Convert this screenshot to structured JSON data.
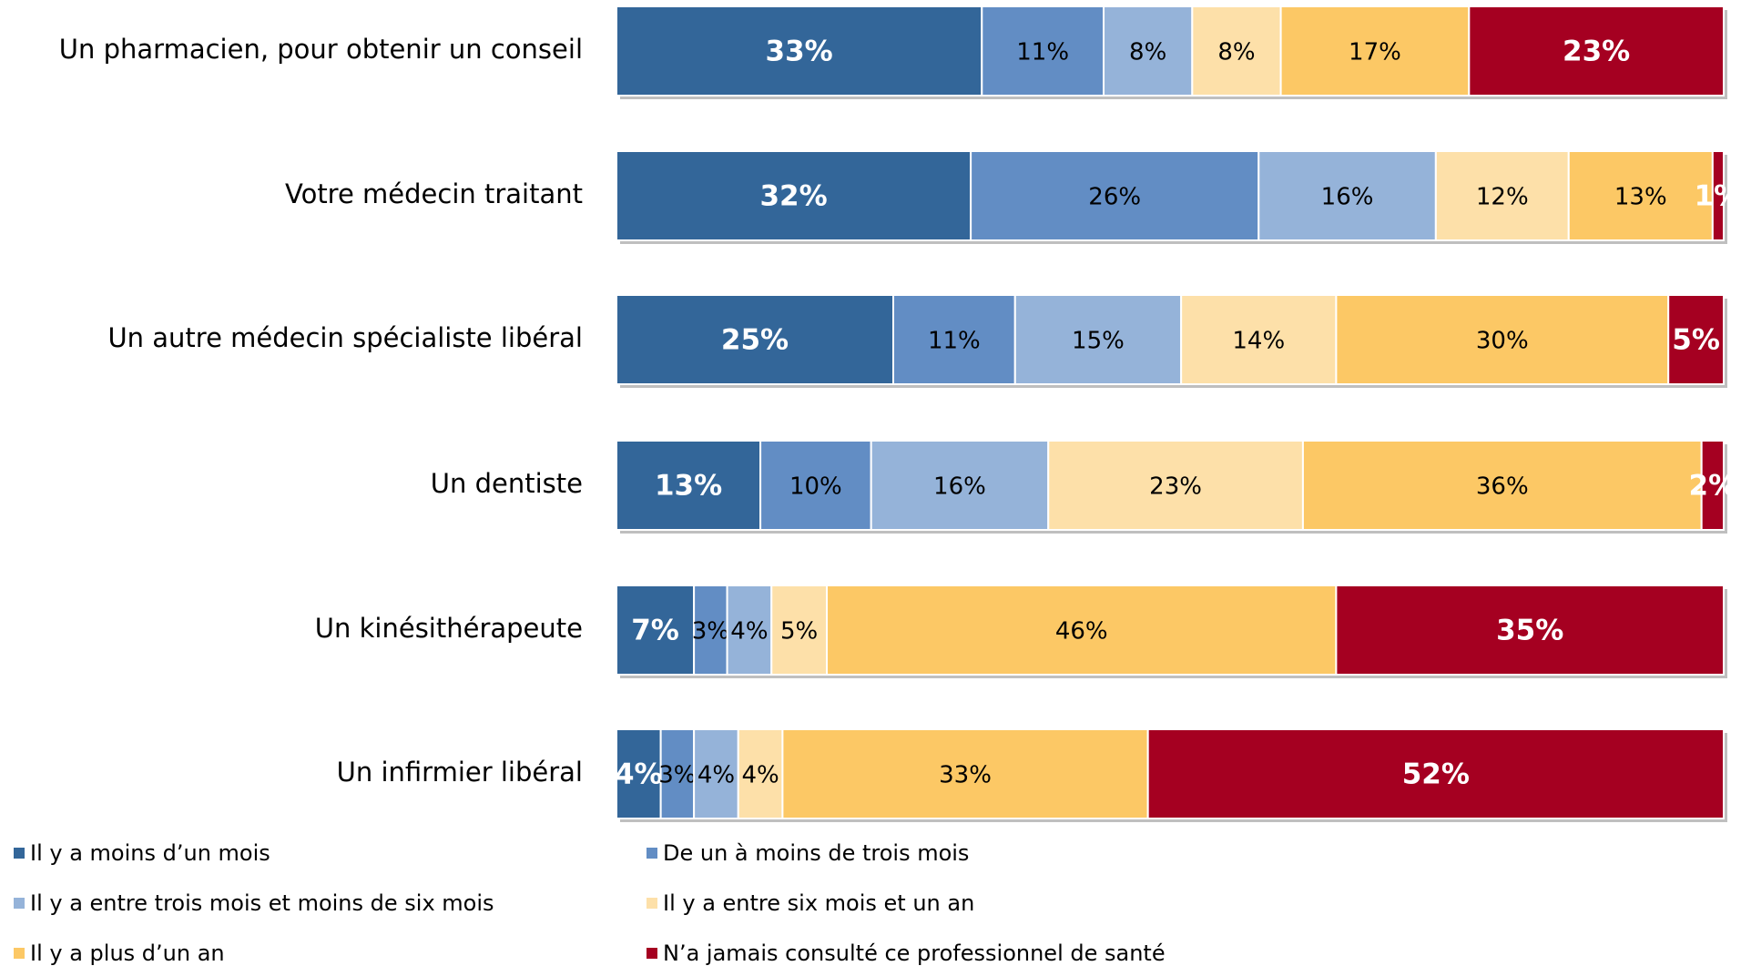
{
  "chart_data": {
    "type": "stacked-bar-horizontal",
    "categories": [
      "Un pharmacien, pour obtenir un conseil",
      "Votre médecin traitant",
      "Un autre médecin spécialiste libéral",
      "Un dentiste",
      "Un kinésithérapeute",
      "Un infirmier libéral"
    ],
    "series": [
      {
        "name": "Il y a moins d’un mois",
        "color": "#336699",
        "values": [
          33,
          32,
          25,
          13,
          7,
          4
        ],
        "value_labels": [
          "33%",
          "32%",
          "25%",
          "13%",
          "7%",
          "4%"
        ]
      },
      {
        "name": "De un à moins de trois mois",
        "color": "#628dc4",
        "values": [
          11,
          26,
          11,
          10,
          3,
          3
        ],
        "value_labels": [
          "11%",
          "26%",
          "11%",
          "10%",
          "3%",
          "3%"
        ]
      },
      {
        "name": "Il y a entre trois mois et moins de six mois",
        "color": "#95b3d9",
        "values": [
          8,
          16,
          15,
          16,
          4,
          4
        ],
        "value_labels": [
          "8%",
          "16%",
          "15%",
          "16%",
          "4%",
          "4%"
        ]
      },
      {
        "name": "Il y a entre six mois et un an",
        "color": "#fde0a9",
        "values": [
          8,
          12,
          14,
          23,
          5,
          4
        ],
        "value_labels": [
          "8%",
          "12%",
          "14%",
          "23%",
          "5%",
          "4%"
        ]
      },
      {
        "name": "Il y a plus d’un an",
        "color": "#fcc865",
        "values": [
          17,
          13,
          30,
          36,
          46,
          33
        ],
        "value_labels": [
          "17%",
          "13%",
          "30%",
          "36%",
          "46%",
          "33%"
        ]
      },
      {
        "name": "N’a jamais consulté ce professionnel de santé",
        "color": "#a50021",
        "values": [
          23,
          1,
          5,
          2,
          35,
          52
        ],
        "value_labels": [
          "23%",
          "1%",
          "5%",
          "2%",
          "35%",
          "52%"
        ]
      }
    ]
  }
}
